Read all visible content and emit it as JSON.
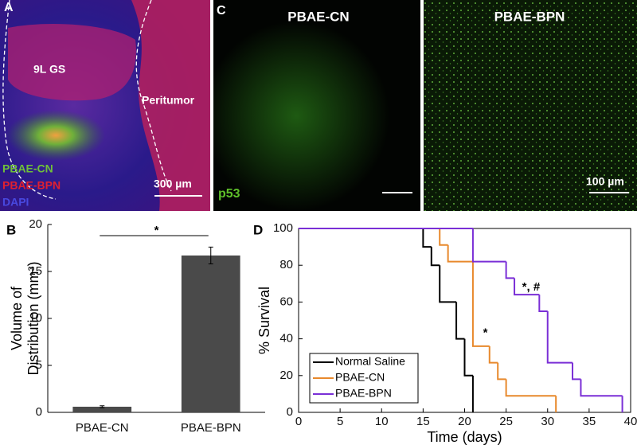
{
  "panels": {
    "a": {
      "label": "A",
      "region_labels": [
        "9L GS",
        "Peritumor"
      ],
      "legend": [
        "PBAE-CN",
        "PBAE-BPN",
        "DAPI"
      ],
      "scale_bar": "300 µm"
    },
    "c": {
      "label": "C",
      "titles": [
        "PBAE-CN",
        "PBAE-BPN"
      ],
      "stain": "p53",
      "scale_bar": "100 µm"
    }
  },
  "chart_data": [
    {
      "type": "bar",
      "panel_label": "B",
      "ylabel": [
        "Volume of",
        "Distribution (mm³)"
      ],
      "categories": [
        "PBAE-CN",
        "PBAE-BPN"
      ],
      "values": [
        0.6,
        16.7
      ],
      "errors": [
        0.1,
        0.9
      ],
      "color": "#4a4a4a",
      "significance": "*",
      "ylim": [
        0,
        20
      ],
      "yticks": [
        0,
        5,
        10,
        15,
        20
      ]
    },
    {
      "type": "step",
      "panel_label": "D",
      "xlabel": "Time (days)",
      "ylabel": "% Survival",
      "series": [
        {
          "name": "Normal Saline",
          "color": "#000000",
          "x": [
            0,
            15,
            16,
            17,
            19,
            20,
            21
          ],
          "values": [
            100,
            90,
            80,
            60,
            40,
            20,
            0
          ]
        },
        {
          "name": "PBAE-CN",
          "color": "#e8892c",
          "x": [
            0,
            17,
            18,
            21,
            23,
            24,
            25,
            31
          ],
          "values": [
            100,
            91,
            82,
            36,
            27,
            18,
            9,
            0
          ]
        },
        {
          "name": "PBAE-BPN",
          "color": "#7a2fd6",
          "x": [
            0,
            21,
            25,
            26,
            29,
            30,
            33,
            34,
            39
          ],
          "values": [
            100,
            82,
            73,
            64,
            55,
            27,
            18,
            9,
            0
          ]
        }
      ],
      "annotations": [
        {
          "text": "*",
          "x": 22.5,
          "y": 43
        },
        {
          "text": "*, #",
          "x": 28,
          "y": 68
        }
      ],
      "xlim": [
        0,
        40
      ],
      "xticks": [
        0,
        5,
        10,
        15,
        20,
        25,
        30,
        35,
        40
      ],
      "ylim": [
        0,
        100
      ],
      "yticks": [
        0,
        20,
        40,
        60,
        80,
        100
      ]
    }
  ]
}
